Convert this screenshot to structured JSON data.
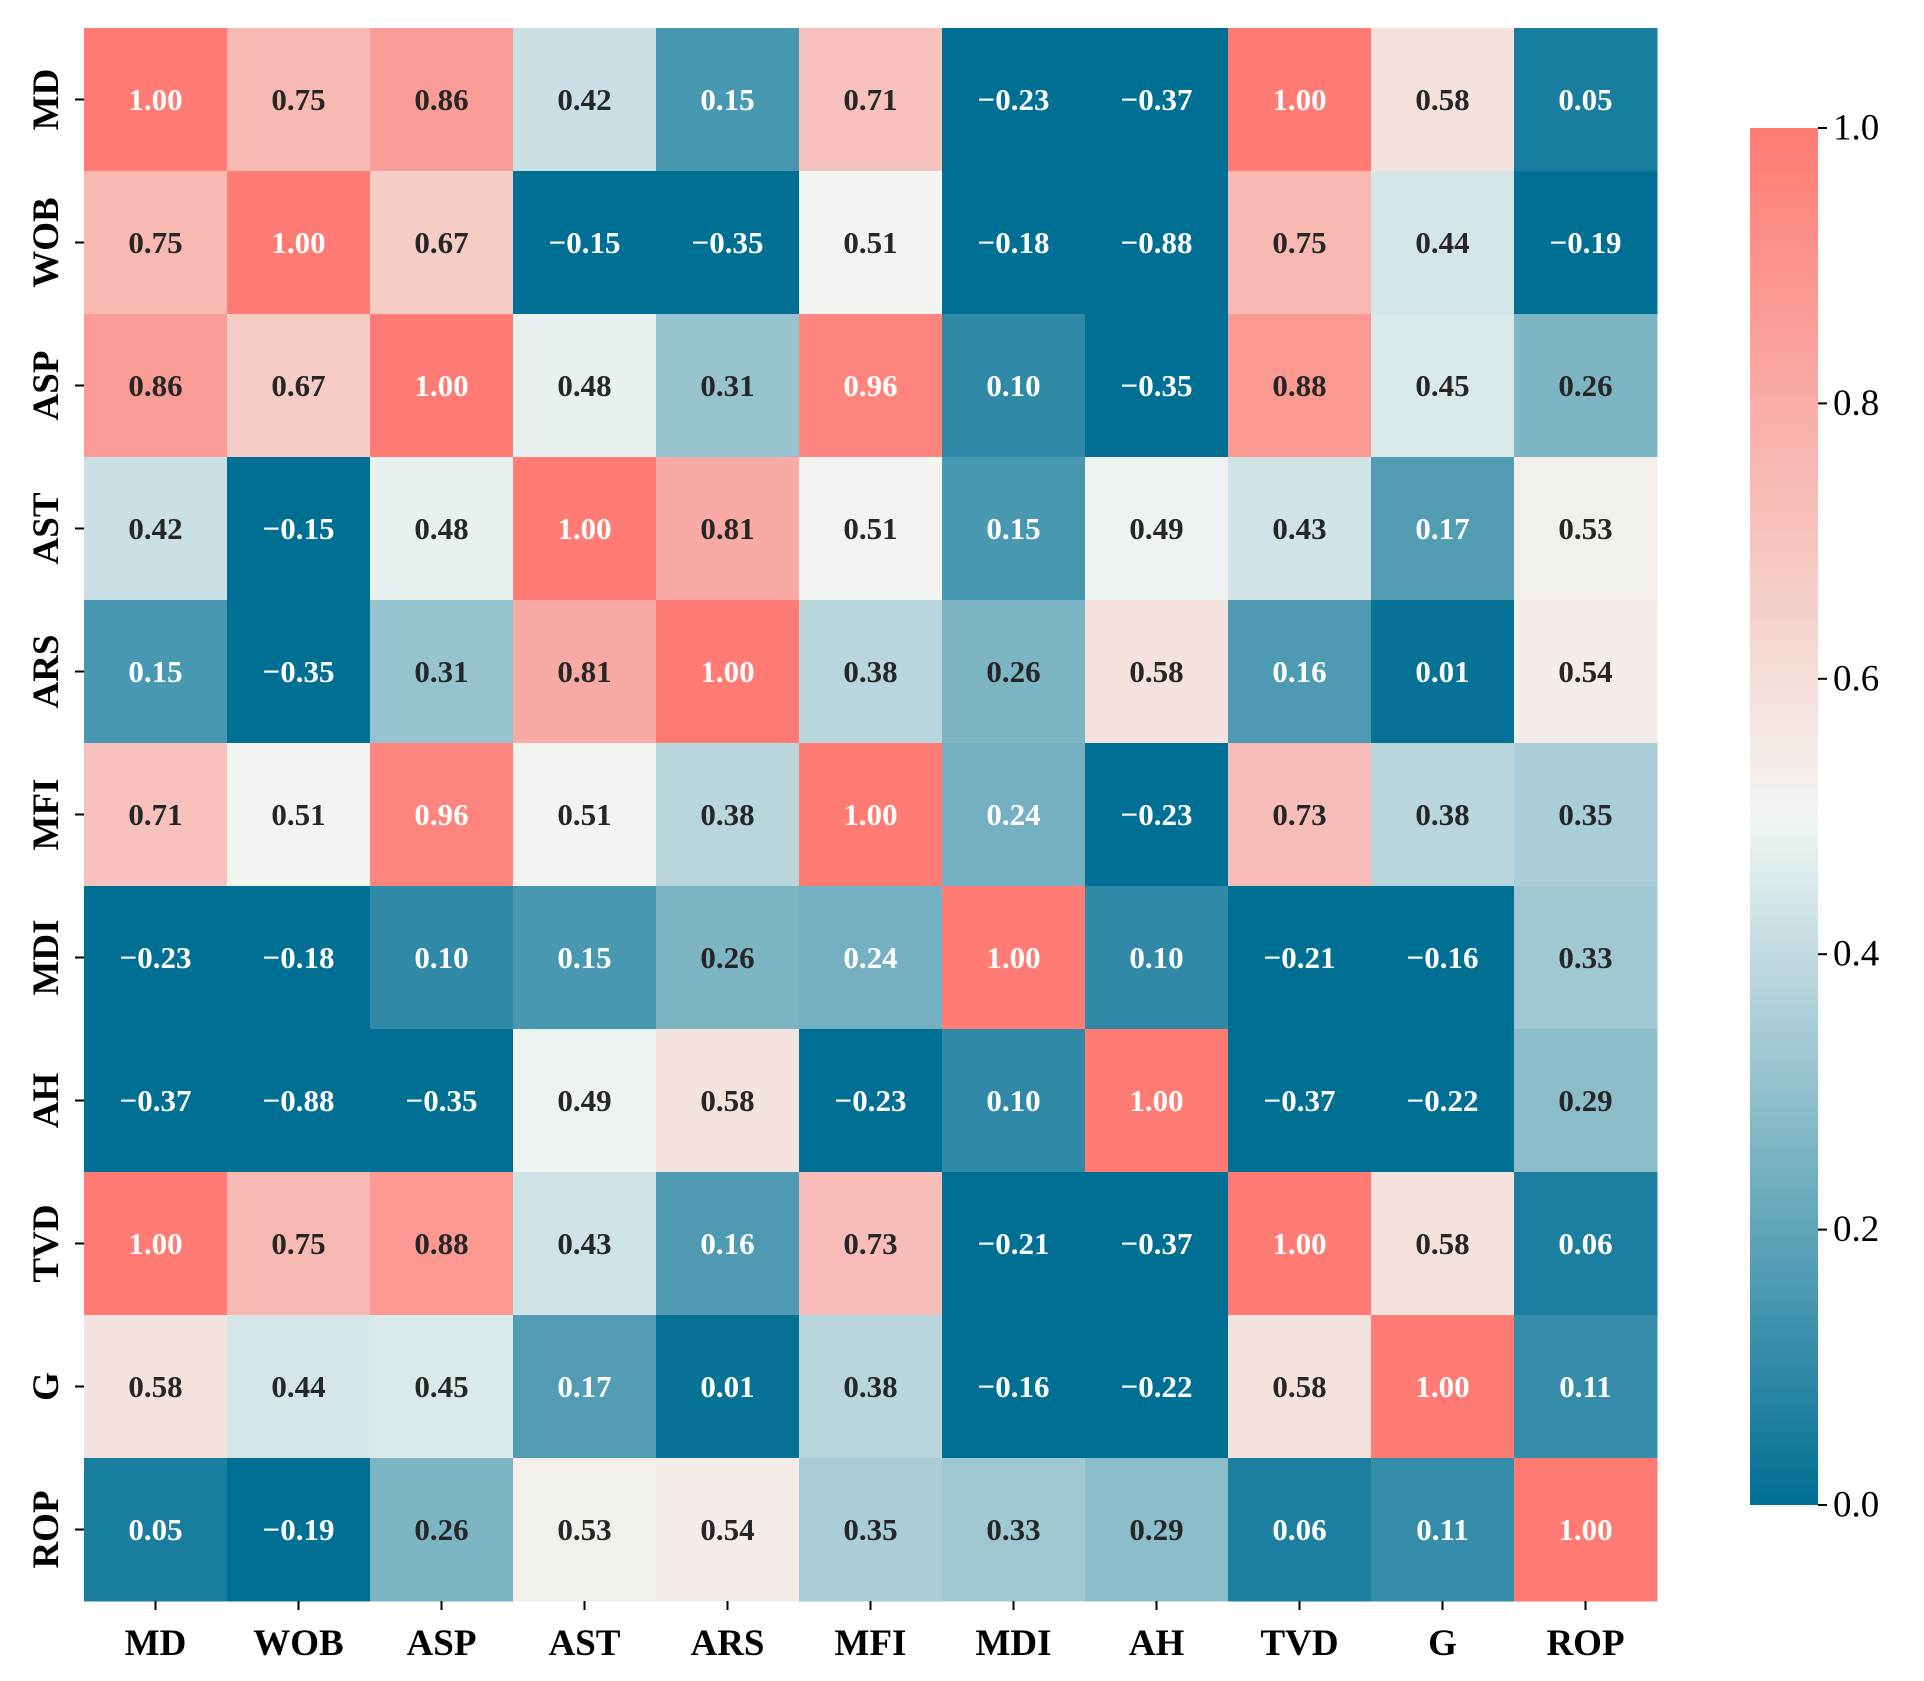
{
  "chart_data": {
    "type": "heatmap",
    "title": "",
    "xlabel": "",
    "ylabel": "",
    "x_categories": [
      "MD",
      "WOB",
      "ASP",
      "AST",
      "ARS",
      "MFI",
      "MDI",
      "AH",
      "TVD",
      "G",
      "ROP"
    ],
    "y_categories": [
      "MD",
      "WOB",
      "ASP",
      "AST",
      "ARS",
      "MFI",
      "MDI",
      "AH",
      "TVD",
      "G",
      "ROP"
    ],
    "values": [
      [
        1.0,
        0.75,
        0.86,
        0.42,
        0.15,
        0.71,
        -0.23,
        -0.37,
        1.0,
        0.58,
        0.05
      ],
      [
        0.75,
        1.0,
        0.67,
        -0.15,
        -0.35,
        0.51,
        -0.18,
        -0.88,
        0.75,
        0.44,
        -0.19
      ],
      [
        0.86,
        0.67,
        1.0,
        0.48,
        0.31,
        0.96,
        0.1,
        -0.35,
        0.88,
        0.45,
        0.26
      ],
      [
        0.42,
        -0.15,
        0.48,
        1.0,
        0.81,
        0.51,
        0.15,
        0.49,
        0.43,
        0.17,
        0.53
      ],
      [
        0.15,
        -0.35,
        0.31,
        0.81,
        1.0,
        0.38,
        0.26,
        0.58,
        0.16,
        0.01,
        0.54
      ],
      [
        0.71,
        0.51,
        0.96,
        0.51,
        0.38,
        1.0,
        0.24,
        -0.23,
        0.73,
        0.38,
        0.35
      ],
      [
        -0.23,
        -0.18,
        0.1,
        0.15,
        0.26,
        0.24,
        1.0,
        0.1,
        -0.21,
        -0.16,
        0.33
      ],
      [
        -0.37,
        -0.88,
        -0.35,
        0.49,
        0.58,
        -0.23,
        0.1,
        1.0,
        -0.37,
        -0.22,
        0.29
      ],
      [
        1.0,
        0.75,
        0.88,
        0.43,
        0.16,
        0.73,
        -0.21,
        -0.37,
        1.0,
        0.58,
        0.06
      ],
      [
        0.58,
        0.44,
        0.45,
        0.17,
        0.01,
        0.38,
        -0.16,
        -0.22,
        0.58,
        1.0,
        0.11
      ],
      [
        0.05,
        -0.19,
        0.26,
        0.53,
        0.54,
        0.35,
        0.33,
        0.29,
        0.06,
        0.11,
        1.0
      ]
    ],
    "colorbar": {
      "range": [
        0.0,
        1.0
      ],
      "ticks": [
        "0.0",
        "0.2",
        "0.4",
        "0.6",
        "0.8",
        "1.0"
      ],
      "colors": {
        "low": "#006f94",
        "mid": "#f2f6f3",
        "high": "#ff7b73"
      }
    },
    "annotations": true,
    "grid": false
  }
}
